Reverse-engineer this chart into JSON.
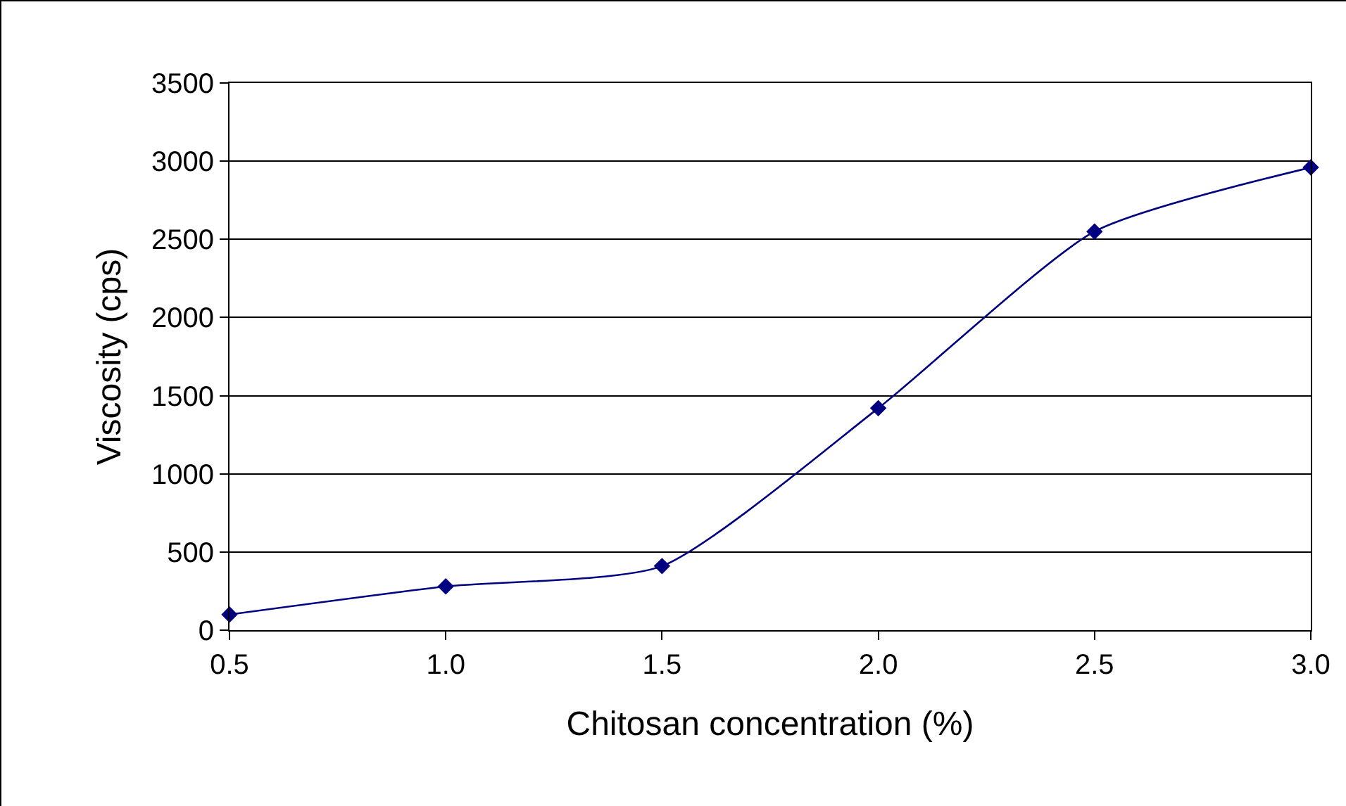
{
  "chart_data": {
    "type": "line",
    "xlabel": "Chitosan concentration (%)",
    "ylabel": "Viscosity (cps)",
    "x": [
      0.5,
      1.0,
      1.5,
      2.0,
      2.5,
      3.0
    ],
    "series": [
      {
        "color": "#000080",
        "values": [
          100,
          280,
          410,
          1420,
          2550,
          2960
        ]
      }
    ],
    "xlim": [
      0.5,
      3.0
    ],
    "xticks": [
      0.5,
      {
        "value": 1,
        "label": "1.0"
      },
      1.5,
      {
        "value": 2,
        "label": "2.0"
      },
      2.5,
      {
        "value": 3,
        "label": "3.0"
      }
    ],
    "ylim": [
      0,
      3500
    ],
    "yticks": [
      0,
      500,
      1000,
      1500,
      2000,
      2500,
      3000,
      3500
    ],
    "grid": "y",
    "marker": "diamond",
    "line_style": "solid"
  }
}
